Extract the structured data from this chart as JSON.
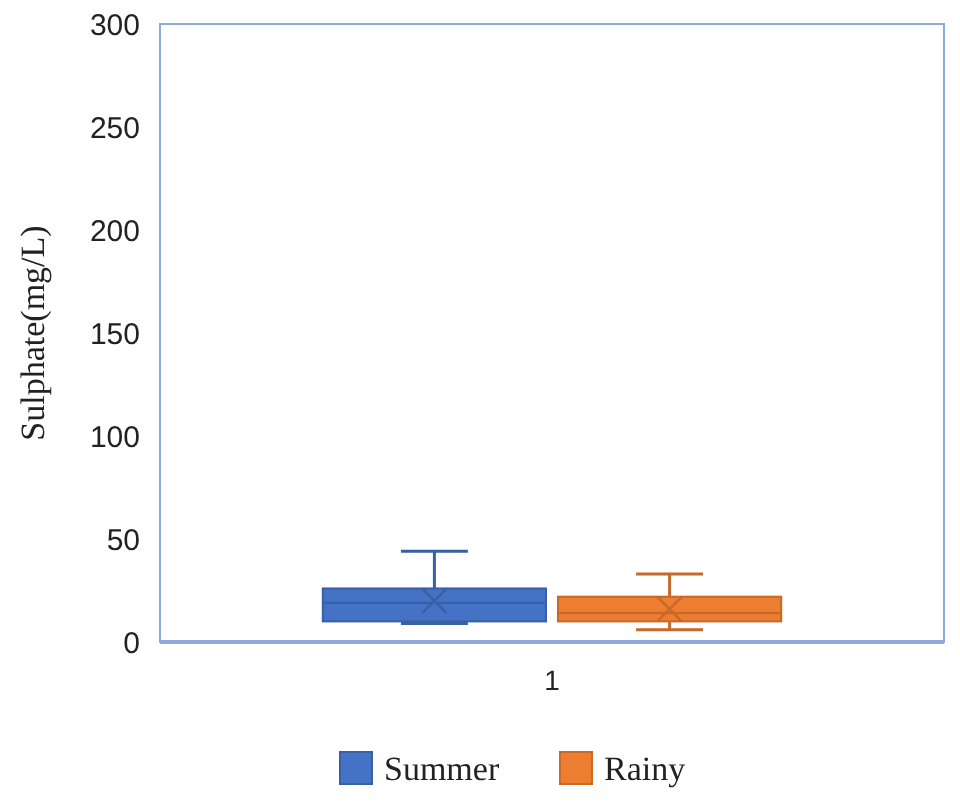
{
  "chart_data": {
    "type": "box",
    "ylabel": "Sulphate(mg/L)",
    "categories": [
      "1"
    ],
    "ylim": [
      0,
      300
    ],
    "yticks": [
      0,
      50,
      100,
      150,
      200,
      250,
      300
    ],
    "grid": false,
    "legend": "bottom",
    "series": [
      {
        "name": "Summer",
        "color": "#4472c4",
        "boxes": [
          {
            "low": 9,
            "q1": 10,
            "median": 19,
            "q3": 26,
            "high": 44,
            "mean": 20
          }
        ]
      },
      {
        "name": "Rainy",
        "color": "#ed7d31",
        "boxes": [
          {
            "low": 6,
            "q1": 10,
            "median": 14,
            "q3": 22,
            "high": 33,
            "mean": 16
          }
        ]
      }
    ]
  }
}
